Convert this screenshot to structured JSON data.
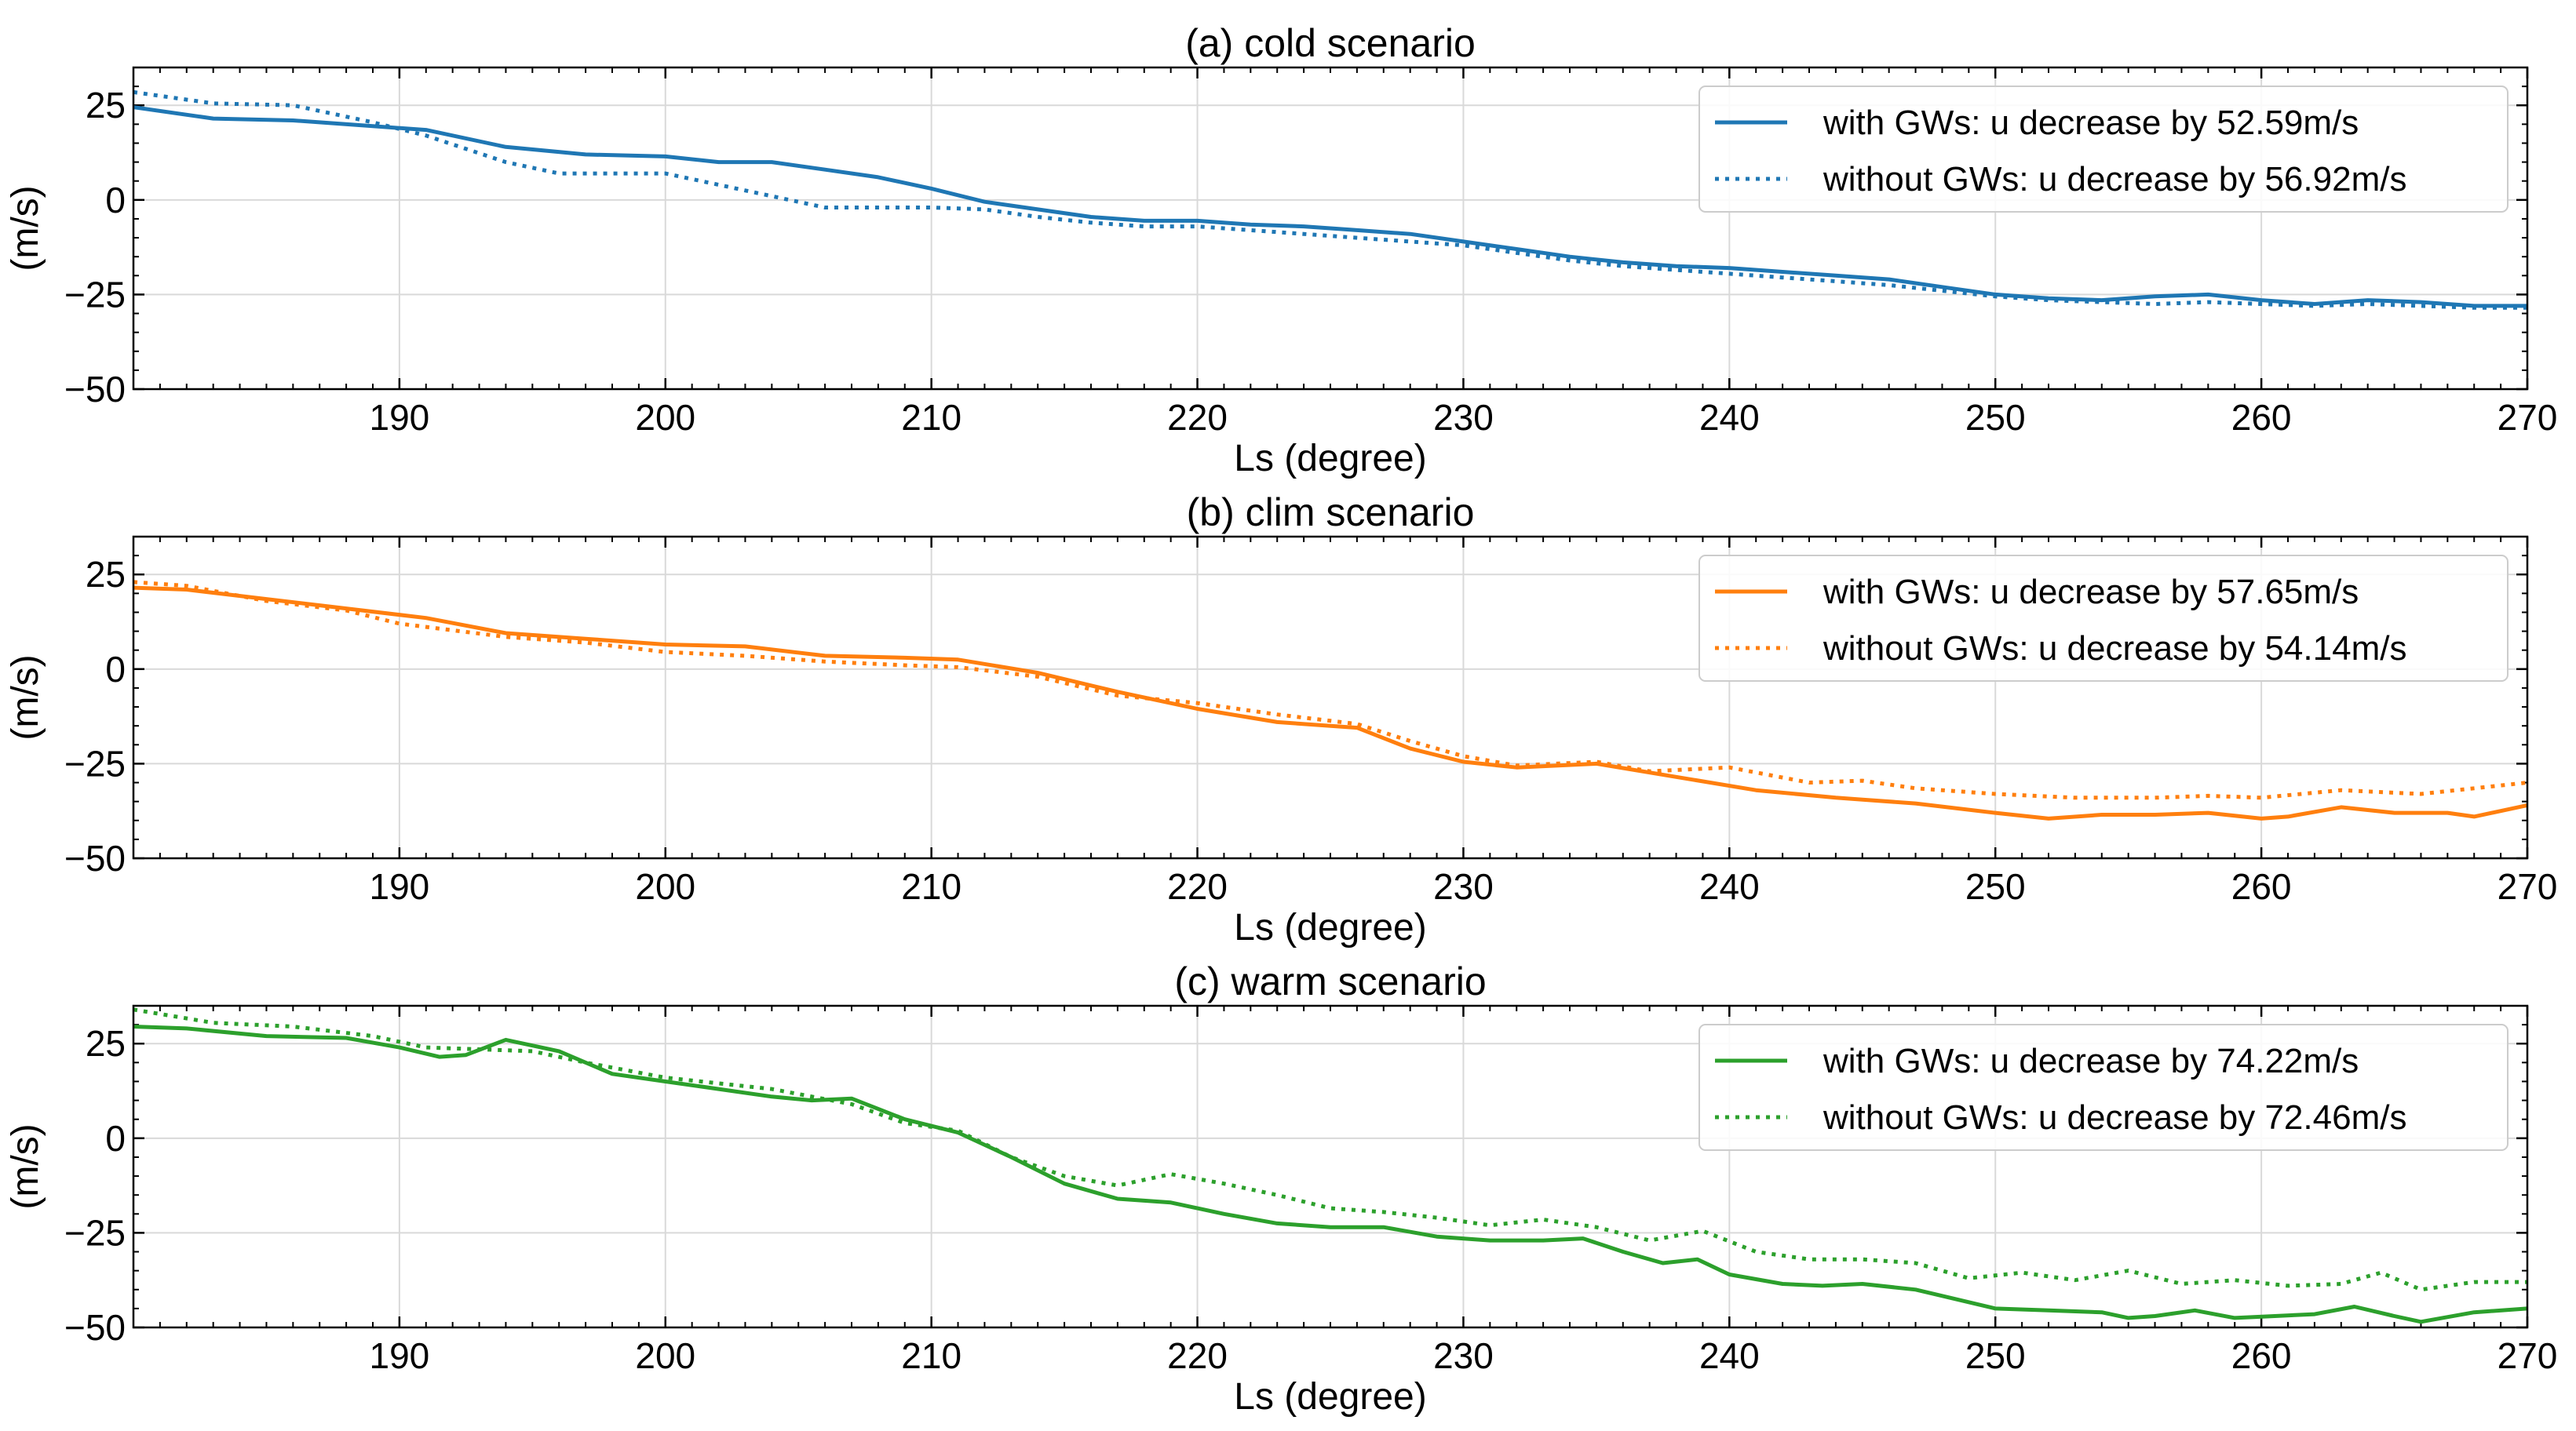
{
  "chart_data": [
    {
      "type": "line",
      "title": "(a) cold scenario",
      "xlabel": "Ls (degree)",
      "ylabel": "(m/s)",
      "xlim": [
        180,
        270
      ],
      "ylim": [
        -50,
        35
      ],
      "xticks": [
        190,
        200,
        210,
        220,
        230,
        240,
        250,
        260,
        270
      ],
      "xtick_labels": [
        "190",
        "200",
        "210",
        "220",
        "230",
        "240",
        "250",
        "260",
        "270"
      ],
      "yticks": [
        25,
        0,
        -25,
        -50
      ],
      "ytick_labels": [
        "25",
        "0",
        "−25",
        "−50"
      ],
      "grid": true,
      "legend_position": "top-right",
      "series": [
        {
          "name": "with GWs: u decrease by 52.59m/s",
          "color": "#1f77b4",
          "style": "solid",
          "x": [
            180,
            183,
            186,
            189,
            191,
            194,
            197,
            200,
            202,
            204,
            206,
            208,
            210,
            212,
            214,
            216,
            218,
            220,
            222,
            224,
            226,
            228,
            230,
            232,
            234,
            236,
            238,
            240,
            242,
            244,
            246,
            248,
            250,
            252,
            254,
            256,
            258,
            260,
            262,
            264,
            266,
            268,
            270
          ],
          "y": [
            24.5,
            21.5,
            21,
            19.5,
            18.5,
            14,
            12,
            11.5,
            10,
            10,
            8,
            6,
            3,
            -0.5,
            -2.5,
            -4.5,
            -5.5,
            -5.5,
            -6.5,
            -7,
            -8,
            -9,
            -11,
            -13,
            -15,
            -16.5,
            -17.5,
            -18,
            -19,
            -20,
            -21,
            -23,
            -25,
            -26,
            -26.5,
            -25.5,
            -25,
            -26.5,
            -27.5,
            -26.5,
            -27,
            -28,
            -28
          ]
        },
        {
          "name": "without GWs: u decrease by 56.92m/s",
          "color": "#1f77b4",
          "style": "dotted",
          "x": [
            180,
            183,
            186,
            189,
            191,
            194,
            196,
            198,
            200,
            202,
            204,
            206,
            208,
            210,
            212,
            214,
            216,
            218,
            220,
            222,
            224,
            226,
            228,
            230,
            232,
            234,
            236,
            238,
            240,
            242,
            244,
            246,
            248,
            250,
            252,
            254,
            256,
            258,
            260,
            262,
            264,
            266,
            268,
            270
          ],
          "y": [
            28.5,
            25.5,
            25,
            20.5,
            17,
            10,
            7,
            7,
            7,
            4,
            1,
            -2,
            -2,
            -2,
            -2.5,
            -4.5,
            -6,
            -7,
            -7,
            -8,
            -9,
            -10,
            -11,
            -12,
            -14,
            -16,
            -17.5,
            -18.5,
            -19.5,
            -20.5,
            -21.5,
            -22.5,
            -24,
            -25.5,
            -26.5,
            -27,
            -27.5,
            -27,
            -27.5,
            -28,
            -27.5,
            -28,
            -28.5,
            -28.5
          ]
        }
      ]
    },
    {
      "type": "line",
      "title": "(b) clim scenario",
      "xlabel": "Ls (degree)",
      "ylabel": "(m/s)",
      "xlim": [
        180,
        270
      ],
      "ylim": [
        -50,
        35
      ],
      "xticks": [
        190,
        200,
        210,
        220,
        230,
        240,
        250,
        260,
        270
      ],
      "xtick_labels": [
        "190",
        "200",
        "210",
        "220",
        "230",
        "240",
        "250",
        "260",
        "270"
      ],
      "yticks": [
        25,
        0,
        -25,
        -50
      ],
      "ytick_labels": [
        "25",
        "0",
        "−25",
        "−50"
      ],
      "grid": true,
      "legend_position": "top-right",
      "series": [
        {
          "name": "with GWs: u decrease by 57.65m/s",
          "color": "#ff7f0e",
          "style": "solid",
          "x": [
            180,
            182,
            185,
            188,
            191,
            194,
            197,
            200,
            203,
            206,
            209,
            211,
            214,
            217,
            220,
            223,
            226,
            228,
            230,
            232,
            235,
            238,
            241,
            244,
            247,
            250,
            252,
            254,
            256,
            258,
            260,
            261,
            263,
            265,
            267,
            268,
            270
          ],
          "y": [
            21.5,
            21,
            18.5,
            16,
            13.5,
            9.5,
            8,
            6.5,
            6,
            3.5,
            3,
            2.5,
            -1,
            -6,
            -10.5,
            -14,
            -15.5,
            -21,
            -24.5,
            -26,
            -25,
            -28.5,
            -32,
            -34,
            -35.5,
            -38,
            -39.5,
            -38.5,
            -38.5,
            -38,
            -39.5,
            -39,
            -36.5,
            -38,
            -38,
            -39,
            -36
          ]
        },
        {
          "name": "without GWs: u decrease by 54.14m/s",
          "color": "#ff7f0e",
          "style": "dotted",
          "x": [
            180,
            182,
            185,
            188,
            190,
            194,
            197,
            200,
            203,
            206,
            209,
            211,
            214,
            217,
            220,
            223,
            226,
            228,
            230,
            232,
            235,
            237,
            240,
            243,
            245,
            247,
            250,
            253,
            256,
            258,
            260,
            263,
            266,
            268,
            270
          ],
          "y": [
            23,
            22,
            18,
            15.5,
            12,
            8.5,
            7,
            4.5,
            3.5,
            2,
            1,
            0.5,
            -2,
            -7,
            -9,
            -12,
            -14.5,
            -19,
            -23,
            -25.5,
            -24.5,
            -27,
            -26,
            -30,
            -29.5,
            -31.5,
            -33,
            -34,
            -34,
            -33.5,
            -34,
            -32,
            -33,
            -31.5,
            -30
          ]
        }
      ]
    },
    {
      "type": "line",
      "title": "(c) warm scenario",
      "xlabel": "Ls (degree)",
      "ylabel": "(m/s)",
      "xlim": [
        180,
        270
      ],
      "ylim": [
        -50,
        35
      ],
      "xticks": [
        190,
        200,
        210,
        220,
        230,
        240,
        250,
        260,
        270
      ],
      "xtick_labels": [
        "190",
        "200",
        "210",
        "220",
        "230",
        "240",
        "250",
        "260",
        "270"
      ],
      "yticks": [
        25,
        0,
        -25,
        -50
      ],
      "ytick_labels": [
        "25",
        "0",
        "−25",
        "−50"
      ],
      "grid": true,
      "legend_position": "top-right",
      "series": [
        {
          "name": "with GWs: u decrease by 74.22m/s",
          "color": "#2ca02c",
          "style": "solid",
          "x": [
            180,
            182,
            185,
            188,
            190,
            191.5,
            192.5,
            194,
            196,
            198,
            200,
            202,
            204,
            205.5,
            207,
            209,
            211,
            213,
            215,
            217,
            219,
            221,
            223,
            225,
            227,
            229,
            231,
            233,
            234.5,
            236,
            237.5,
            238.8,
            240,
            242,
            243.5,
            245,
            247,
            248.5,
            250,
            252,
            254,
            255,
            256,
            257.5,
            259,
            260.5,
            262,
            263.5,
            265,
            266,
            268,
            270
          ],
          "y": [
            29.5,
            29,
            27,
            26.5,
            24,
            21.5,
            22,
            26,
            23,
            17,
            15,
            13,
            11,
            10,
            10.5,
            5,
            1.5,
            -5,
            -12,
            -16,
            -17,
            -20,
            -22.5,
            -23.5,
            -23.5,
            -26,
            -27,
            -27,
            -26.5,
            -30,
            -33,
            -32,
            -36,
            -38.5,
            -39,
            -38.5,
            -40,
            -42.5,
            -45,
            -45.5,
            -46,
            -47.5,
            -47,
            -45.5,
            -47.5,
            -47,
            -46.5,
            -44.5,
            -47,
            -48.5,
            -46,
            -45
          ]
        },
        {
          "name": "without GWs: u decrease by 72.46m/s",
          "color": "#2ca02c",
          "style": "dotted",
          "x": [
            180,
            183,
            186,
            189,
            191,
            193,
            195,
            197,
            200,
            202,
            204,
            207,
            209,
            211,
            213,
            215,
            217,
            219,
            221,
            223,
            225,
            227,
            229,
            231,
            233,
            235,
            237,
            239,
            241,
            243,
            245,
            247,
            249,
            251,
            253,
            255,
            257,
            259,
            261,
            263,
            264.5,
            266,
            268,
            270
          ],
          "y": [
            34,
            30.5,
            29.5,
            27,
            24,
            23.5,
            23,
            20,
            16,
            14.5,
            13,
            9,
            4,
            2,
            -5,
            -10,
            -12.5,
            -9.5,
            -12,
            -15,
            -18.5,
            -19.5,
            -21,
            -23,
            -21.5,
            -23.5,
            -27,
            -24.5,
            -30,
            -32,
            -32,
            -33,
            -37,
            -35.5,
            -37.5,
            -35,
            -38.5,
            -37.5,
            -39,
            -38.5,
            -35.5,
            -40,
            -38,
            -38
          ]
        }
      ]
    }
  ]
}
